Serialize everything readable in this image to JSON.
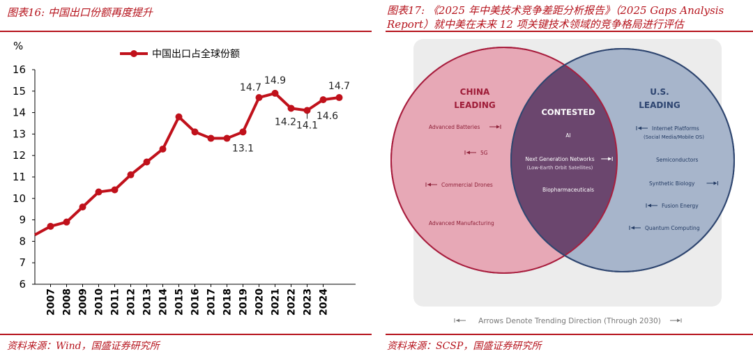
{
  "left": {
    "title": "图表16:  中国出口份额再度提升",
    "source": "资料来源：Wind，国盛证券研究所"
  },
  "right": {
    "title": "图表17: 《2025 年中美技术竞争差距分析报告》（2025 Gaps Analysis Report）就中美在未来 12 项关键技术领域的竞争格局进行评估",
    "source": "资料来源：SCSP，国盛证券研究所"
  },
  "chart_data": [
    {
      "type": "line",
      "title": "",
      "ylabel": "%",
      "xlabel": "",
      "ylim": [
        6,
        16
      ],
      "yticks": [
        6,
        7,
        8,
        9,
        10,
        11,
        12,
        13,
        14,
        15,
        16
      ],
      "x": [
        "2006",
        "2007",
        "2008",
        "2009",
        "2010",
        "2011",
        "2012",
        "2013",
        "2014",
        "2015",
        "2016",
        "2017",
        "2018",
        "2019",
        "2020",
        "2021",
        "2022",
        "2023",
        "2024",
        "2025"
      ],
      "xticks": [
        "2007",
        "2008",
        "2009",
        "2010",
        "2011",
        "2012",
        "2013",
        "2014",
        "2015",
        "2016",
        "2017",
        "2018",
        "2019",
        "2020",
        "2021",
        "2022",
        "2023",
        "2024"
      ],
      "series": [
        {
          "name": "中国出口占全球份额",
          "color": "#c0111b",
          "values": [
            8.3,
            8.7,
            8.9,
            9.6,
            10.3,
            10.4,
            11.1,
            11.7,
            12.3,
            13.8,
            13.1,
            12.8,
            12.8,
            13.1,
            14.7,
            14.9,
            14.2,
            14.1,
            14.6,
            14.7
          ]
        }
      ],
      "data_labels": [
        {
          "x": "2019",
          "text": "13.1"
        },
        {
          "x": "2020",
          "text": "14.7"
        },
        {
          "x": "2021",
          "text": "14.9"
        },
        {
          "x": "2022",
          "text": "14.2"
        },
        {
          "x": "2023",
          "text": "14.1"
        },
        {
          "x": "2024",
          "text": "14.6"
        },
        {
          "x": "2025",
          "text": "14.7"
        }
      ],
      "legend_position": "top",
      "grid": false
    },
    {
      "type": "venn",
      "sets": [
        {
          "name": "CHINA LEADING",
          "label_lines": [
            "CHINA",
            "LEADING"
          ],
          "color": "#e7a8b6",
          "items": [
            {
              "text": "Advanced Batteries",
              "arrow": "right"
            },
            {
              "text": "5G",
              "arrow": "left"
            },
            {
              "text": "Commercial Drones",
              "arrow": "left"
            },
            {
              "text": "Advanced Manufacturing",
              "arrow": ""
            }
          ]
        },
        {
          "name": "CONTESTED",
          "label_lines": [
            "CONTESTED"
          ],
          "color": "#6b466e",
          "items": [
            {
              "text": "AI",
              "sub": "",
              "arrow": ""
            },
            {
              "text": "Next Generation Networks",
              "sub": "(Low-Earth Orbit Satellites)",
              "arrow": "right"
            },
            {
              "text": "Biopharmaceuticals",
              "sub": "",
              "arrow": ""
            }
          ]
        },
        {
          "name": "U.S. LEADING",
          "label_lines": [
            "U.S.",
            "LEADING"
          ],
          "color": "#a7b5cb",
          "items": [
            {
              "text": "Internet Platforms",
              "sub": "(Social Media/Mobile OS)",
              "arrow": "left"
            },
            {
              "text": "Semiconductors",
              "sub": "",
              "arrow": ""
            },
            {
              "text": "Synthetic Biology",
              "sub": "",
              "arrow": "right"
            },
            {
              "text": "Fusion Energy",
              "sub": "",
              "arrow": "left"
            },
            {
              "text": "Quantum Computing",
              "sub": "",
              "arrow": "left"
            }
          ]
        }
      ],
      "footnote": "Arrows Denote Trending Direction (Through 2030)"
    }
  ]
}
